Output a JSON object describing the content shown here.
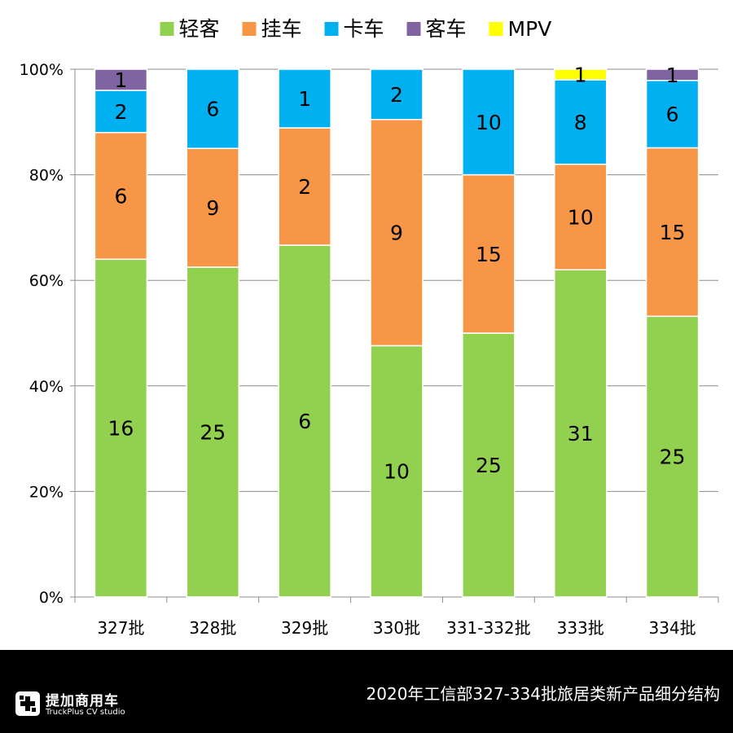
{
  "chart_data": {
    "type": "bar",
    "stacked": "percent",
    "title": "",
    "xlabel": "",
    "ylabel": "",
    "ylim": [
      0,
      100
    ],
    "yticks": [
      "0%",
      "20%",
      "40%",
      "60%",
      "80%",
      "100%"
    ],
    "categories": [
      "327批",
      "328批",
      "329批",
      "330批",
      "331-332批",
      "333批",
      "334批"
    ],
    "series": [
      {
        "name": "轻客",
        "color": "#92d050",
        "values": [
          16,
          25,
          6,
          10,
          25,
          31,
          25
        ]
      },
      {
        "name": "挂车",
        "color": "#f79646",
        "values": [
          6,
          9,
          2,
          9,
          15,
          10,
          15
        ]
      },
      {
        "name": "卡车",
        "color": "#00b0f0",
        "values": [
          2,
          6,
          1,
          2,
          10,
          8,
          6
        ]
      },
      {
        "name": "客车",
        "color": "#8064a2",
        "values": [
          1,
          0,
          0,
          0,
          0,
          0,
          1
        ]
      },
      {
        "name": "MPV",
        "color": "#ffff00",
        "values": [
          0,
          0,
          0,
          0,
          0,
          1,
          0
        ]
      }
    ],
    "legend_position": "top",
    "grid": true
  },
  "footer": {
    "logo_title": "提加商用车",
    "logo_subtitle": "TruckPlus CV studio",
    "caption": "2020年工信部327-334批旅居类新产品细分结构"
  }
}
